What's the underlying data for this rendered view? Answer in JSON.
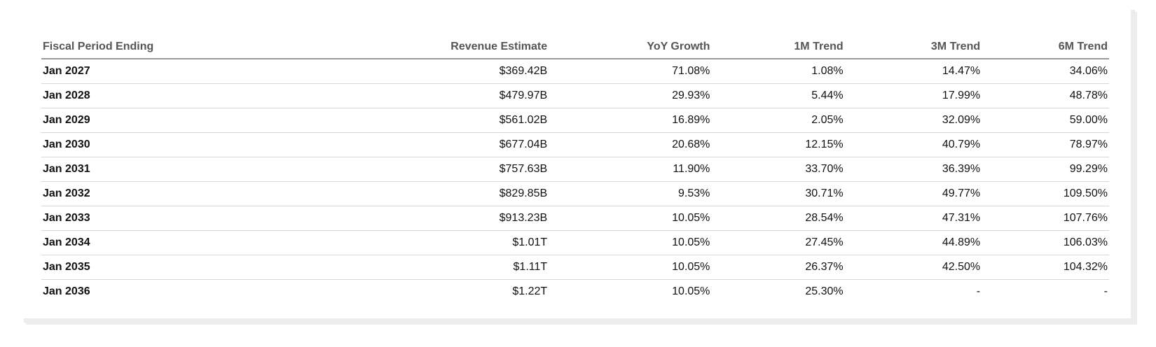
{
  "table": {
    "headers": [
      "Fiscal Period Ending",
      "Revenue Estimate",
      "YoY Growth",
      "1M Trend",
      "3M Trend",
      "6M Trend"
    ],
    "rows": [
      [
        "Jan 2027",
        "$369.42B",
        "71.08%",
        "1.08%",
        "14.47%",
        "34.06%"
      ],
      [
        "Jan 2028",
        "$479.97B",
        "29.93%",
        "5.44%",
        "17.99%",
        "48.78%"
      ],
      [
        "Jan 2029",
        "$561.02B",
        "16.89%",
        "2.05%",
        "32.09%",
        "59.00%"
      ],
      [
        "Jan 2030",
        "$677.04B",
        "20.68%",
        "12.15%",
        "40.79%",
        "78.97%"
      ],
      [
        "Jan 2031",
        "$757.63B",
        "11.90%",
        "33.70%",
        "36.39%",
        "99.29%"
      ],
      [
        "Jan 2032",
        "$829.85B",
        "9.53%",
        "30.71%",
        "49.77%",
        "109.50%"
      ],
      [
        "Jan 2033",
        "$913.23B",
        "10.05%",
        "28.54%",
        "47.31%",
        "107.76%"
      ],
      [
        "Jan 2034",
        "$1.01T",
        "10.05%",
        "27.45%",
        "44.89%",
        "106.03%"
      ],
      [
        "Jan 2035",
        "$1.11T",
        "10.05%",
        "26.37%",
        "42.50%",
        "104.32%"
      ],
      [
        "Jan 2036",
        "$1.22T",
        "10.05%",
        "25.30%",
        "-",
        "-"
      ]
    ]
  },
  "colors": {
    "positive_trend": "#1a7f4b",
    "header_text": "#555555",
    "body_text": "#111111"
  }
}
